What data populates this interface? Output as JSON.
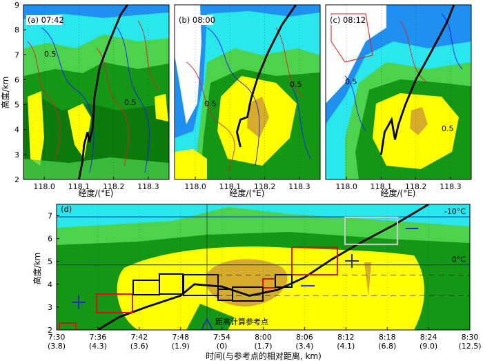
{
  "colors": {
    "level_white": "#ffffff",
    "level_blue": "#1f8ff0",
    "level_cyan": "#2ae7ee",
    "level_lightgreen": "#4cd24c",
    "level_green": "#149714",
    "level_darkgreen": "#0b7a0b",
    "level_yellow": "#ffff00",
    "level_tan": "#d5ad2a",
    "contour_red": "#dd2020",
    "contour_blue": "#1a1aff",
    "track_black": "#000000",
    "box_red": "#e01010",
    "box_black": "#000000",
    "box_gray": "#c8c8c8",
    "line_blue": "#1c2fb0"
  },
  "chart_data": [
    {
      "type": "heatmap",
      "panel_label": "(a) 07:42",
      "xlabel": "经度/(°E)",
      "ylabel": "高度/km",
      "xlim": [
        117.94,
        118.36
      ],
      "ylim": [
        2,
        9
      ],
      "xticks": [
        "118.0",
        "118.1",
        "118.2",
        "118.3"
      ],
      "xtick_values": [
        118.0,
        118.1,
        118.2,
        118.3
      ],
      "yticks": [
        "2",
        "3",
        "4",
        "5",
        "6",
        "7",
        "8",
        "9"
      ],
      "contour_label": "0.5",
      "track": [
        [
          118.1,
          2.0
        ],
        [
          118.11,
          2.7
        ],
        [
          118.115,
          3.4
        ],
        [
          118.125,
          3.9
        ],
        [
          118.13,
          3.5
        ],
        [
          118.14,
          4.1
        ],
        [
          118.145,
          5.3
        ],
        [
          118.16,
          6.5
        ],
        [
          118.19,
          7.6
        ],
        [
          118.22,
          8.6
        ],
        [
          118.24,
          9.0
        ]
      ]
    },
    {
      "type": "heatmap",
      "panel_label": "(b) 08:00",
      "xlabel": "经度/(°E)",
      "ylabel": "",
      "xlim": [
        117.94,
        118.36
      ],
      "ylim": [
        2,
        9
      ],
      "xticks": [
        "118.0",
        "118.1",
        "118.2",
        "118.3"
      ],
      "xtick_values": [
        118.0,
        118.1,
        118.2,
        118.3
      ],
      "yticks": [],
      "contour_label": "0.5",
      "track": [
        [
          118.13,
          3.3
        ],
        [
          118.12,
          3.9
        ],
        [
          118.13,
          4.4
        ],
        [
          118.15,
          4.5
        ],
        [
          118.16,
          5.2
        ],
        [
          118.18,
          6.1
        ],
        [
          118.21,
          7.1
        ],
        [
          118.25,
          8.2
        ],
        [
          118.29,
          9.0
        ]
      ]
    },
    {
      "type": "heatmap",
      "panel_label": "(c) 08:12",
      "xlabel": "经度/(°E)",
      "ylabel": "",
      "xlim": [
        117.94,
        118.36
      ],
      "ylim": [
        2,
        9
      ],
      "xticks": [
        "118.0",
        "118.1",
        "118.2",
        "118.3"
      ],
      "xtick_values": [
        118.0,
        118.1,
        118.2,
        118.3
      ],
      "yticks": [],
      "contour_label": "0.5",
      "track": [
        [
          118.1,
          3.0
        ],
        [
          118.11,
          3.9
        ],
        [
          118.13,
          4.4
        ],
        [
          118.14,
          3.6
        ],
        [
          118.15,
          4.2
        ],
        [
          118.17,
          5.0
        ],
        [
          118.2,
          6.0
        ],
        [
          118.24,
          7.0
        ],
        [
          118.29,
          8.3
        ],
        [
          118.31,
          9.0
        ]
      ]
    },
    {
      "type": "heatmap",
      "panel_label": "(d)",
      "xlabel": "时间(与参考点的相对距离, km)",
      "ylabel": "高度/km",
      "xlim": [
        0,
        60
      ],
      "ylim": [
        2,
        7.5
      ],
      "xtick_values": [
        0,
        6,
        12,
        18,
        24,
        30,
        36,
        42,
        48,
        54,
        60
      ],
      "xticks": [
        "7:30",
        "7:36",
        "7:42",
        "7:48",
        "7:54",
        "8:00",
        "8:06",
        "8:12",
        "8:18",
        "8:24",
        "8:30"
      ],
      "xticks_distance": [
        "(3.8)",
        "(4.3)",
        "(3.6)",
        "(1.9)",
        "(0)",
        "(1.7)",
        "(3.4)",
        "(4.1)",
        "(6.8)",
        "(9.0)",
        "(12.5)"
      ],
      "yticks": [
        "2",
        "3",
        "4",
        "5",
        "6",
        "7"
      ],
      "isotherms": [
        {
          "label": "-10°C",
          "height_km": 6.95
        },
        {
          "label": "0°C",
          "height_km": 4.85
        }
      ],
      "reference_point_label": "距离计算参考点",
      "reference_time": 24,
      "track": [
        [
          6,
          2.0
        ],
        [
          9,
          2.55
        ],
        [
          13,
          3.0
        ],
        [
          18,
          3.5
        ],
        [
          20,
          4.0
        ],
        [
          24,
          3.9
        ],
        [
          28,
          3.5
        ],
        [
          32,
          3.75
        ],
        [
          36,
          4.3
        ],
        [
          40,
          5.1
        ],
        [
          44,
          5.8
        ],
        [
          49,
          6.6
        ],
        [
          54,
          7.5
        ]
      ]
    }
  ]
}
